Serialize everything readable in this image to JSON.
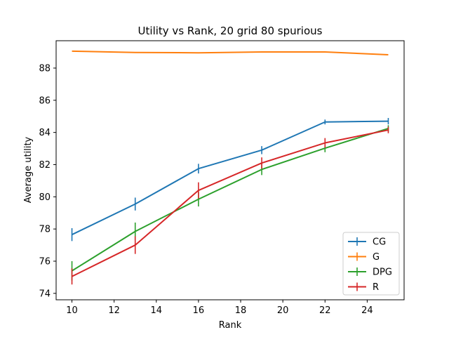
{
  "chart_data": {
    "type": "line",
    "title": "Utility vs Rank, 20 grid 80 spurious",
    "xlabel": "Rank",
    "ylabel": "Average utility",
    "xlim": [
      9.25,
      25.75
    ],
    "ylim": [
      73.6,
      89.7
    ],
    "xticks": [
      10,
      12,
      14,
      16,
      18,
      20,
      22,
      24
    ],
    "yticks": [
      74,
      76,
      78,
      80,
      82,
      84,
      86,
      88
    ],
    "grid": false,
    "legend_position": "lower-right",
    "x": [
      10,
      13,
      16,
      19,
      22,
      25
    ],
    "series": [
      {
        "name": "CG",
        "color": "#1f77b4",
        "values": [
          77.65,
          79.55,
          81.75,
          82.9,
          84.65,
          84.7
        ],
        "errors": [
          0.4,
          0.4,
          0.3,
          0.25,
          0.15,
          0.2
        ]
      },
      {
        "name": "G",
        "color": "#ff7f0e",
        "values": [
          89.05,
          88.97,
          88.95,
          89.0,
          89.0,
          88.83
        ],
        "errors": [
          0,
          0,
          0,
          0,
          0,
          0
        ]
      },
      {
        "name": "DPG",
        "color": "#2ca02c",
        "values": [
          75.4,
          77.85,
          79.85,
          81.7,
          83.02,
          84.25
        ],
        "errors": [
          0.6,
          0.55,
          0.45,
          0.35,
          0.25,
          0.2
        ]
      },
      {
        "name": "R",
        "color": "#d62728",
        "values": [
          75.05,
          77.0,
          80.4,
          82.1,
          83.35,
          84.15
        ],
        "errors": [
          0.5,
          0.55,
          0.5,
          0.35,
          0.3,
          0.2
        ]
      }
    ]
  }
}
